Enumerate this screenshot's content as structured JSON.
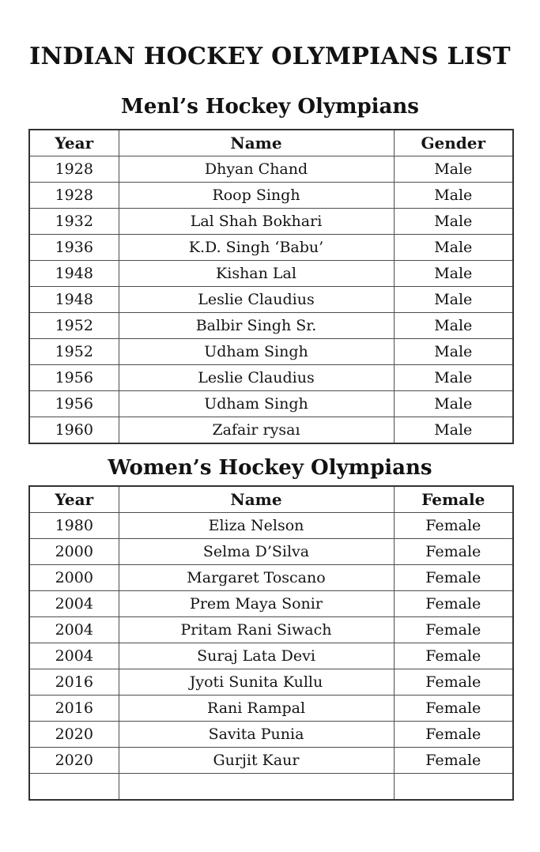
{
  "page": {
    "title": "INDIAN HOCKEY OLYMPIANS LIST"
  },
  "men_table": {
    "heading": "Menl’s Hockey Olympians",
    "columns": [
      "Year",
      "Name",
      "Gender"
    ],
    "rows": [
      {
        "year": "1928",
        "name": "Dhyan Chand",
        "gender": "Male"
      },
      {
        "year": "1928",
        "name": "Roop Singh",
        "gender": "Male"
      },
      {
        "year": "1932",
        "name": "Lal Shah Bokhari",
        "gender": "Male"
      },
      {
        "year": "1936",
        "name": "K.D. Singh ‘Babu’",
        "gender": "Male"
      },
      {
        "year": "1948",
        "name": "Kishan Lal",
        "gender": "Male"
      },
      {
        "year": "1948",
        "name": "Leslie Claudius",
        "gender": "Male"
      },
      {
        "year": "1952",
        "name": "Balbir Singh Sr.",
        "gender": "Male"
      },
      {
        "year": "1952",
        "name": "Udham Singh",
        "gender": "Male"
      },
      {
        "year": "1956",
        "name": "Leslie Claudius",
        "gender": "Male"
      },
      {
        "year": "1956",
        "name": "Udham Singh",
        "gender": "Male"
      },
      {
        "year": "1960",
        "name": "Zafair rysaı",
        "gender": "Male"
      }
    ]
  },
  "women_table": {
    "heading": "Women’s Hockey Olympians",
    "columns": [
      "Year",
      "Name",
      "Female"
    ],
    "rows": [
      {
        "year": "1980",
        "name": "Eliza Nelson",
        "gender": "Female"
      },
      {
        "year": "2000",
        "name": "Selma D’Silva",
        "gender": "Female"
      },
      {
        "year": "2000",
        "name": "Margaret Toscano",
        "gender": "Female"
      },
      {
        "year": "2004",
        "name": "Prem Maya Sonir",
        "gender": "Female"
      },
      {
        "year": "2004",
        "name": "Pritam Rani Siwach",
        "gender": "Female"
      },
      {
        "year": "2004",
        "name": "Suraj Lata Devi",
        "gender": "Female"
      },
      {
        "year": "2016",
        "name": "Jyoti Sunita Kullu",
        "gender": "Female"
      },
      {
        "year": "2016",
        "name": "Rani Rampal",
        "gender": "Female"
      },
      {
        "year": "2020",
        "name": "Savita Punia",
        "gender": "Female"
      },
      {
        "year": "2020",
        "name": "Gurjit Kaur",
        "gender": "Female"
      },
      {
        "year": "",
        "name": "",
        "gender": ""
      }
    ]
  }
}
